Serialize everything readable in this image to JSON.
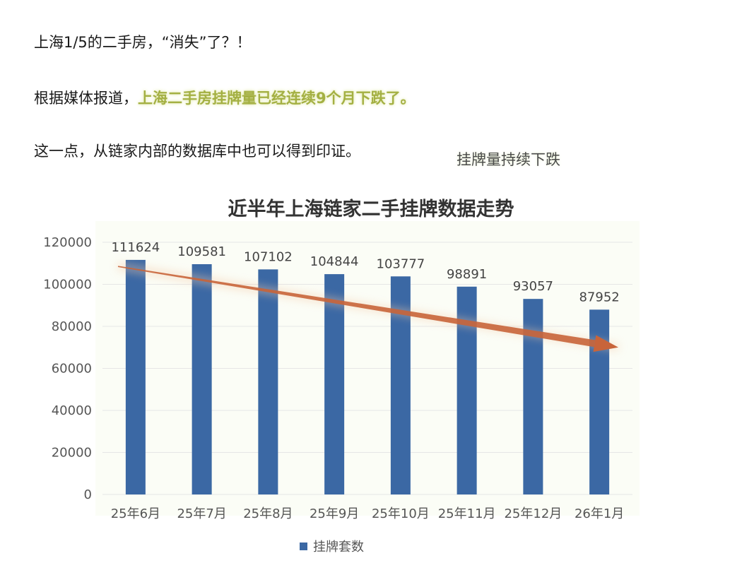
{
  "article": {
    "line1": "上海1/5的二手房，“消失”了？！",
    "line2_prefix": "根据媒体报道，",
    "line2_highlight": "上海二手房挂牌量已经连续9个月下跌了。",
    "line3": "这一点，从链家内部的数据库中也可以得到印证。",
    "annotation": "挂牌量持续下跌"
  },
  "colors": {
    "bar": "#3b68a4",
    "trend": "#c8643a",
    "highlight": "#a4b043",
    "grid": "#e6e6e6"
  },
  "chart_data": {
    "type": "bar",
    "title": "近半年上海链家二手挂牌数据走势",
    "categories": [
      "25年6月",
      "25年7月",
      "25年8月",
      "25年9月",
      "25年10月",
      "25年11月",
      "25年12月",
      "26年1月"
    ],
    "series": [
      {
        "name": "挂牌套数",
        "values": [
          111624,
          109581,
          107102,
          104844,
          103777,
          98891,
          93057,
          87952
        ]
      }
    ],
    "yticks": [
      0,
      20000,
      40000,
      60000,
      80000,
      100000,
      120000
    ],
    "ylim": [
      0,
      120000
    ],
    "grid": true,
    "legend_position": "bottom",
    "trend_arrow": {
      "from_value": 108500,
      "to_value": 70000,
      "direction": "down"
    }
  }
}
